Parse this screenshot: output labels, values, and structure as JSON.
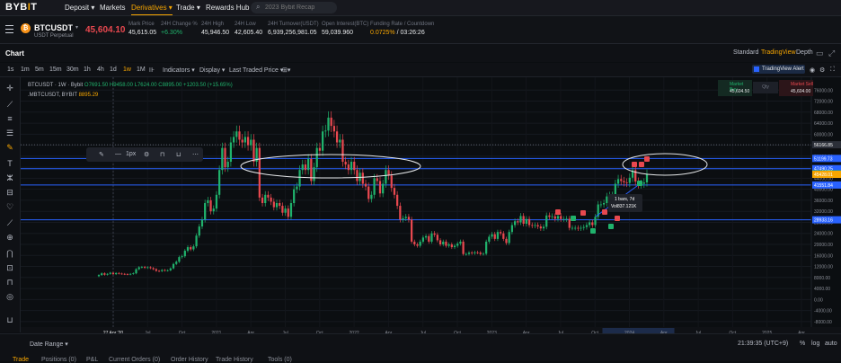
{
  "topnav": {
    "logo_main": "BYB",
    "logo_accent": "I",
    "logo_end": "T",
    "items": [
      {
        "label": "Deposit ▾",
        "active": false
      },
      {
        "label": "Markets",
        "active": false
      },
      {
        "label": "Derivatives ▾",
        "active": true
      },
      {
        "label": "Trade ▾",
        "active": false
      },
      {
        "label": "Rewards Hub",
        "active": false
      }
    ],
    "search_placeholder": "2023 Bybit Recap"
  },
  "ticker": {
    "symbol": "BTCUSDT",
    "subtitle": "USDT Perpetual",
    "last_price": "45,604.10",
    "stats": [
      {
        "label": "Mark Price",
        "value": "45,615.05"
      },
      {
        "label": "24H Change %",
        "value": "+6.30%"
      },
      {
        "label": "24H High",
        "value": "45,946.50"
      },
      {
        "label": "24H Low",
        "value": "42,605.40"
      },
      {
        "label": "24H Turnover(USDT)",
        "value": "6,939,256,981.05"
      },
      {
        "label": "Open Interest(BTC)",
        "value": "59,039.960"
      },
      {
        "label": "Funding Rate / Countdown",
        "value_rate": "0.0725%",
        "value_countdown": " / 03:26:26"
      }
    ]
  },
  "chart_header": {
    "title": "Chart",
    "views": [
      "Standard",
      "TradingView",
      "Depth"
    ],
    "active_view": "TradingView"
  },
  "toolbar": {
    "intervals": [
      "1s",
      "1m",
      "5m",
      "15m",
      "30m",
      "1h",
      "4h",
      "1d",
      "1w",
      "1M"
    ],
    "active_interval": "1w",
    "menus": [
      "Indicators ▾",
      "Display ▾",
      "Last Traded Price ▾"
    ],
    "alert_label": "TradingView Alert"
  },
  "legend": {
    "main": "BTCUSDT · 1W · Bybit",
    "ohlc": "O7691.50 H9458.00 L7624.00 C8895.00 +1203.50 (+15.65%)",
    "secondary": ".MBTCUSDT, BYBIT",
    "secondary_value": "8895.29"
  },
  "drawing_toolbar": {
    "width_label": "1px"
  },
  "market_box": {
    "buy_label": "Market Buy",
    "buy_price": "45,604.50",
    "qty_placeholder": "Qty",
    "sell_label": "Market Sell",
    "sell_price": "45,604.00"
  },
  "tooltip": {
    "line1": "1 bars, 7d",
    "line2": "Vol837.121K"
  },
  "price_axis": {
    "ticks": [
      "76000.00",
      "72000.00",
      "68000.00",
      "64000.00",
      "60000.00",
      "56000.00",
      "52000.00",
      "48000.00",
      "44000.00",
      "40000.00",
      "36000.00",
      "32000.00",
      "28000.00",
      "24000.00",
      "20000.00",
      "16000.00",
      "12000.00",
      "8000.00",
      "4000.00",
      "0.00",
      "-4000.00",
      "-8000.00"
    ],
    "badges": [
      {
        "text": "56166.85",
        "color": "#2b2f38",
        "price": 56166.85
      },
      {
        "text": "51199.73",
        "color": "#2962ff",
        "price": 51199.73
      },
      {
        "text": "47490.25",
        "color": "#2962ff",
        "price": 47490.25
      },
      {
        "text": "45604.10",
        "color": "#20b26c",
        "price": 45604.1
      },
      {
        "text": "45428.01",
        "color": "#f7a600",
        "price": 45428.01
      },
      {
        "text": "41551.84",
        "color": "#2962ff",
        "price": 41551.84
      },
      {
        "text": "28933.16",
        "color": "#2962ff",
        "price": 28933.16
      }
    ]
  },
  "time_axis": {
    "labels": [
      "27 Apr '20",
      "Jul",
      "Oct",
      "2021",
      "Apr",
      "Jul",
      "Oct",
      "2022",
      "Apr",
      "Jul",
      "Oct",
      "2023",
      "Apr",
      "Jul",
      "Oct",
      "2024",
      "Apr",
      "Jul",
      "Oct",
      "2025",
      "Apr"
    ],
    "highlight_index": 15
  },
  "bottom": {
    "date_range": "Date Range ▾",
    "clock": "21:39:35 (UTC+9)",
    "options": [
      "%",
      "log",
      "auto"
    ],
    "tabs": [
      "Trade",
      "Positions (0)",
      "P&L",
      "Current Orders (0)",
      "Order History",
      "Trade History",
      "Tools (0)"
    ]
  },
  "colors": {
    "up": "#20b26c",
    "down": "#e8484f",
    "accent": "#f7a600",
    "hline": "#2962ff"
  },
  "chart_data": {
    "type": "candlestick",
    "interval": "1w",
    "ylim": [
      -10000,
      80000
    ],
    "horizontal_levels": [
      51199.73,
      47490.25,
      41551.84,
      28933.16
    ],
    "dotted_level": 56166.85,
    "series": [
      {
        "x": 0,
        "values": [
          8895,
          9500,
          9000,
          9300,
          9700,
          9200,
          9600,
          9400,
          9300,
          9200,
          9100,
          9300,
          9500,
          11000,
          11700,
          11800,
          11500,
          11700,
          11400,
          11000,
          10400,
          10300,
          10700,
          10500,
          10600,
          11300,
          12900,
          13700,
          15400,
          15700,
          17700,
          19000,
          18200,
          19300,
          23200,
          26500,
          29000,
          35000,
          36000,
          32000,
          33000,
          38000,
          47000,
          55000,
          48000,
          50000,
          57000,
          59000,
          61000,
          58000,
          57000,
          59000,
          56000,
          58000,
          50000,
          55000,
          37000,
          35000,
          38000,
          37000,
          35500,
          33500,
          35000,
          34000,
          31500,
          33000,
          30000,
          35000,
          40000,
          41000,
          47000,
          49000,
          47000,
          51000,
          43000,
          48000,
          55000,
          54000,
          61000,
          61300,
          66000,
          63000,
          61000,
          57000,
          58000,
          50000,
          49000,
          47000,
          50000,
          47000,
          43000,
          46000,
          42000,
          41000,
          36500,
          38000,
          44000,
          43000,
          38500,
          42000,
          47000,
          45000,
          40500,
          38000,
          34000,
          29000,
          29500,
          30000,
          29000,
          21000,
          20000,
          19500,
          21000,
          22500,
          23000,
          21000,
          24000,
          23500,
          21500,
          20000,
          21000,
          19500,
          20000,
          19000,
          19500,
          20300,
          21000,
          16500,
          16500,
          17000,
          16800,
          17100,
          17000,
          16500,
          16600,
          21000,
          22800,
          23700,
          22000,
          24500,
          24000,
          22000,
          20500,
          24500,
          27000,
          28400,
          28000,
          30300,
          27500,
          29200,
          27000,
          26800,
          27000,
          26500,
          25800,
          26400,
          30500,
          30000,
          30200,
          29300,
          30300,
          29200,
          29200,
          29300,
          26000,
          26000,
          26000,
          25800,
          26000,
          26300,
          27000,
          28000,
          27000,
          30000,
          34500,
          34500,
          35000,
          37400,
          37800,
          37800,
          42000,
          43700,
          43000,
          42500,
          42300,
          44200,
          46900,
          42800,
          41700,
          42000,
          42500,
          45604
        ]
      }
    ]
  }
}
